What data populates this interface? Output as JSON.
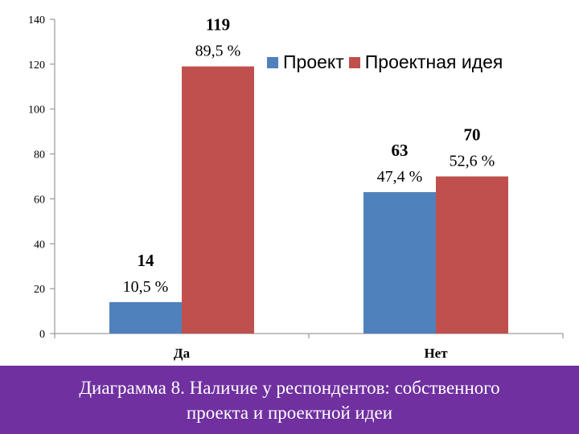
{
  "chart_data": {
    "type": "bar",
    "categories": [
      "Да",
      "Нет"
    ],
    "series": [
      {
        "name": "Проект",
        "color": "#4f81bd",
        "values": [
          14,
          63
        ],
        "percent_labels": [
          "10,5 %",
          "47,4 %"
        ]
      },
      {
        "name": "Проектная идея",
        "color": "#c0504d",
        "values": [
          119,
          70
        ],
        "percent_labels": [
          "89,5 %",
          "52,6 %"
        ]
      }
    ],
    "ylim": [
      0,
      140
    ],
    "yticks": [
      "0",
      "20",
      "40",
      "60",
      "80",
      "100",
      "120",
      "140"
    ],
    "grid": false,
    "legend_position": "top-right"
  },
  "caption": {
    "line1": "Диаграмма 8. Наличие у респондентов: собственного",
    "line2": "проекта и проектной идеи"
  }
}
